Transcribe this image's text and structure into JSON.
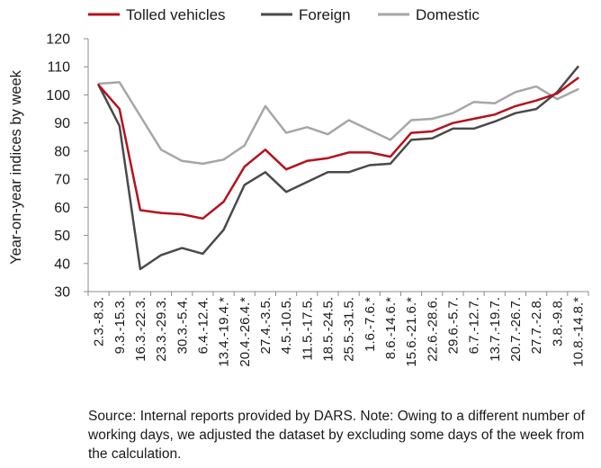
{
  "chart_data": {
    "type": "line",
    "title": "",
    "xlabel": "",
    "ylabel": "Year-on-year indices by week",
    "ylim": [
      30,
      120
    ],
    "yticks": [
      30,
      40,
      50,
      60,
      70,
      80,
      90,
      100,
      110,
      120
    ],
    "grid": false,
    "legend_position": "top",
    "categories": [
      "2.3.-8.3.",
      "9.3.-15.3.",
      "16.3.-22.3.",
      "23.3.-29.3.",
      "30.3.-5.4.",
      "6.4.-12.4.",
      "13.4.-19.4.*",
      "20.4.-26.4.*",
      "27.4.-3.5.",
      "4.5.-10.5.",
      "11.5.-17.5.",
      "18.5.-24.5.",
      "25.5.-31.5.",
      "1.6.-7.6.*",
      "8.6.-14.6.*",
      "15.6.-21.6.*",
      "22.6.-28.6.",
      "29.6.-5.7.",
      "6.7.-12.7.",
      "13.7.-19.7.",
      "20.7.-26.7.",
      "27.7.-2.8.",
      "3.8.-9.8.",
      "10.8.-14.8.*"
    ],
    "series": [
      {
        "name": "Tolled vehicles",
        "color": "#b5121b",
        "values": [
          103.5,
          95,
          59,
          58,
          57.5,
          56,
          62,
          74.5,
          80.5,
          73.5,
          76.5,
          77.5,
          79.5,
          79.5,
          78,
          86.5,
          87,
          90,
          91.5,
          93,
          96,
          98,
          100.5,
          106
        ]
      },
      {
        "name": "Foreign",
        "color": "#4a4a4a",
        "values": [
          103.5,
          89,
          38,
          43,
          45.5,
          43.5,
          52,
          68,
          72.5,
          65.5,
          69,
          72.5,
          72.5,
          75,
          75.5,
          84,
          84.5,
          88,
          88,
          90.5,
          93.5,
          95,
          101,
          110
        ]
      },
      {
        "name": "Domestic",
        "color": "#a6a6a6",
        "values": [
          104,
          104.5,
          92.5,
          80.5,
          76.5,
          75.5,
          77,
          82,
          96,
          86.5,
          88.5,
          86,
          91,
          87.5,
          84,
          91,
          91.5,
          93.5,
          97.5,
          97,
          101,
          103,
          98.5,
          102
        ]
      }
    ]
  },
  "source_note": "Source: Internal reports provided by DARS. Note: Owing to a different number of working days, we adjusted the dataset by excluding some days of the week from the calculation."
}
